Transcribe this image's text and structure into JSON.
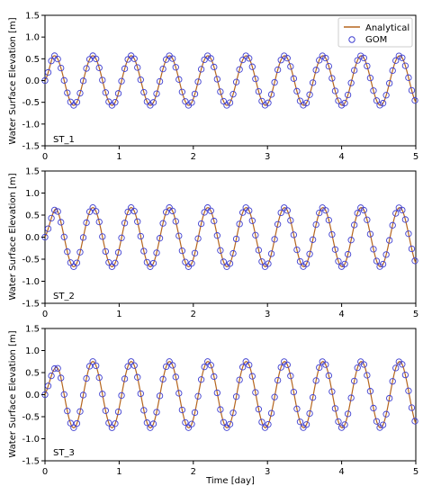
{
  "figure": {
    "xlabel": "Time [day]",
    "legend": {
      "placement": "top-right",
      "entries": [
        {
          "name": "Analytical",
          "marker": "line",
          "color": "#b5651d"
        },
        {
          "name": "GOM",
          "marker": "open-circle",
          "color": "#3f3fd0"
        }
      ]
    }
  },
  "chart_data": [
    {
      "type": "line",
      "station": "ST_1",
      "ylabel": "Water Surface Elevation [m]",
      "xlabel": "",
      "xlim": [
        0,
        5
      ],
      "ylim": [
        -1.5,
        1.5
      ],
      "x_ticks": [
        "0",
        "1",
        "2",
        "3",
        "4",
        "5"
      ],
      "y_ticks": [
        "1.5",
        "1.0",
        "0.5",
        "0.0",
        "-0.5",
        "-1.0",
        "-1.5"
      ],
      "wave": {
        "amplitude": 0.57,
        "period_day": 0.517,
        "phase_start_value": 0.0,
        "ramp_until_day": 0.1
      },
      "series": [
        {
          "name": "Analytical",
          "style": "line",
          "color": "#b5651d"
        },
        {
          "name": "GOM",
          "style": "open-circle",
          "color": "#3f3fd0",
          "sample_step_day": 0.043
        }
      ]
    },
    {
      "type": "line",
      "station": "ST_2",
      "ylabel": "Water Surface Elevation [m]",
      "xlabel": "",
      "xlim": [
        0,
        5
      ],
      "ylim": [
        -1.5,
        1.5
      ],
      "x_ticks": [
        "0",
        "1",
        "2",
        "3",
        "4",
        "5"
      ],
      "y_ticks": [
        "1.5",
        "1.0",
        "0.5",
        "0.0",
        "-0.5",
        "-1.0",
        "-1.5"
      ],
      "wave": {
        "amplitude": 0.67,
        "period_day": 0.517,
        "phase_start_value": 0.0,
        "ramp_until_day": 0.15
      },
      "series": [
        {
          "name": "Analytical",
          "style": "line",
          "color": "#b5651d"
        },
        {
          "name": "GOM",
          "style": "open-circle",
          "color": "#3f3fd0",
          "sample_step_day": 0.043
        }
      ]
    },
    {
      "type": "line",
      "station": "ST_3",
      "ylabel": "Water Surface Elevation [m]",
      "xlabel": "Time [day]",
      "xlim": [
        0,
        5
      ],
      "ylim": [
        -1.5,
        1.5
      ],
      "x_ticks": [
        "0",
        "1",
        "2",
        "3",
        "4",
        "5"
      ],
      "y_ticks": [
        "1.5",
        "1.0",
        "0.5",
        "0.0",
        "-0.5",
        "-1.0",
        "-1.5"
      ],
      "wave": {
        "amplitude": 0.75,
        "period_day": 0.517,
        "phase_start_value": 0.0,
        "ramp_until_day": 0.2
      },
      "series": [
        {
          "name": "Analytical",
          "style": "line",
          "color": "#b5651d"
        },
        {
          "name": "GOM",
          "style": "open-circle",
          "color": "#3f3fd0",
          "sample_step_day": 0.043
        }
      ]
    }
  ]
}
